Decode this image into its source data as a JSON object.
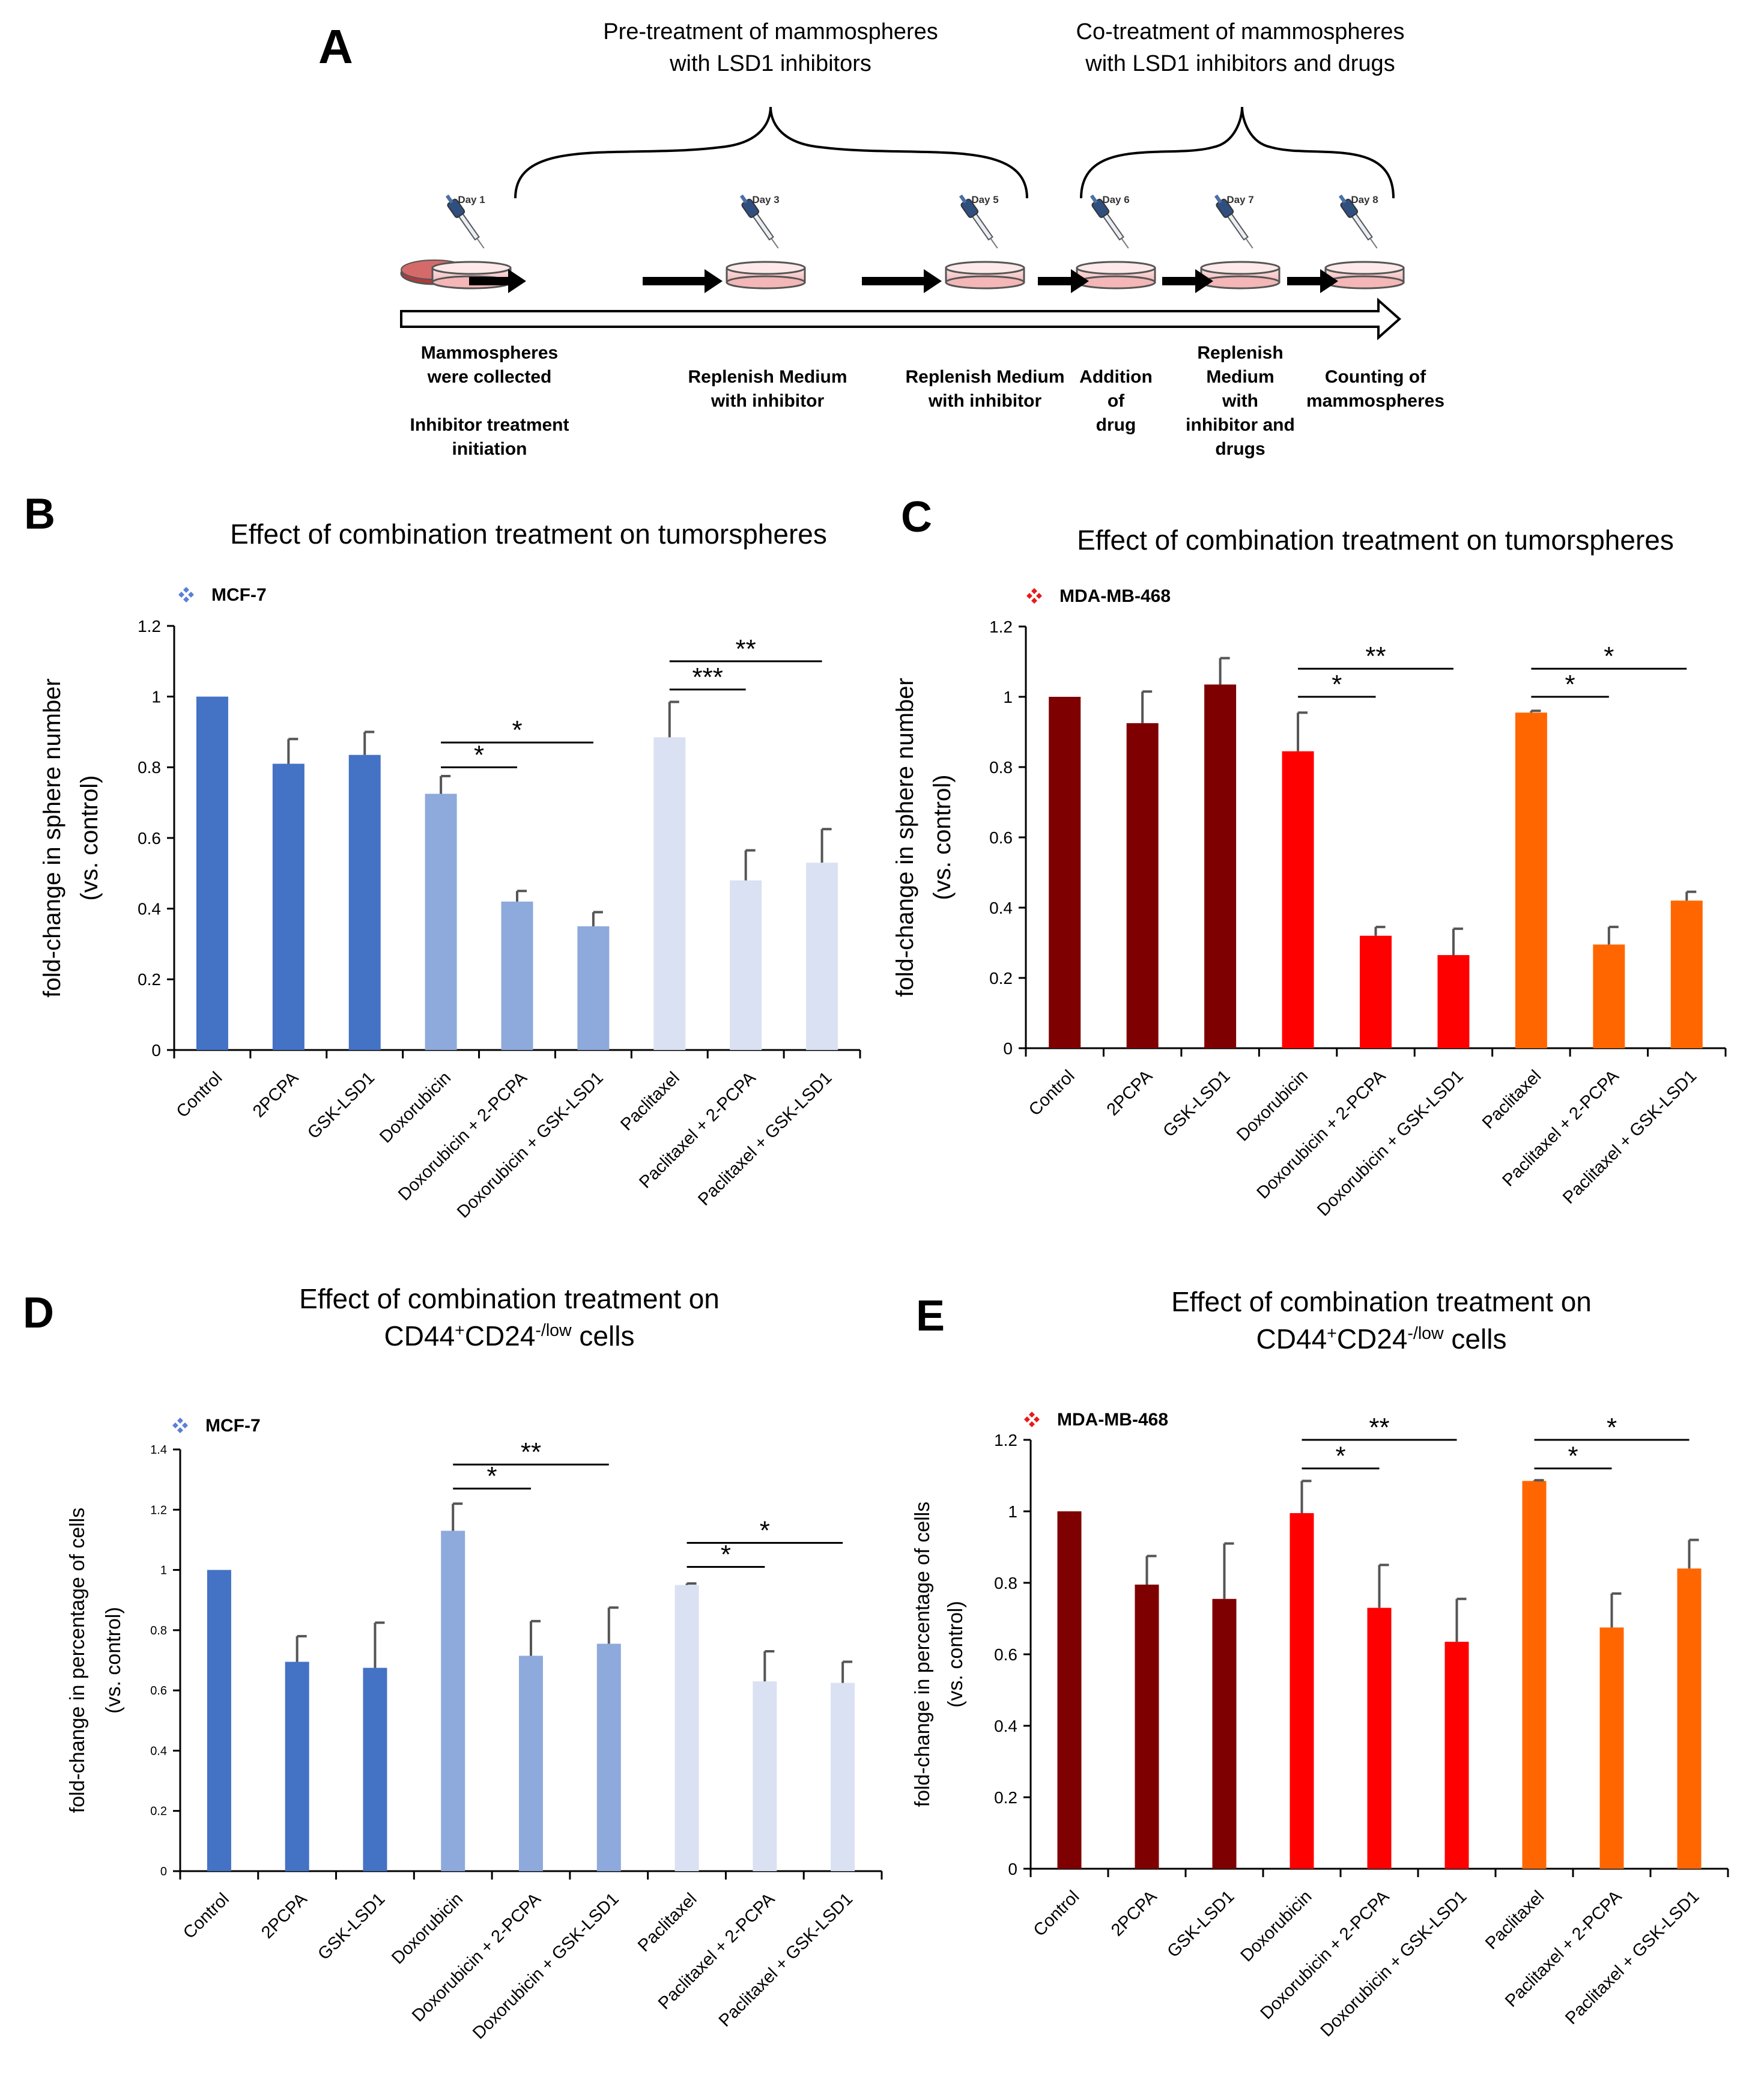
{
  "panel_a": {
    "letter": "A",
    "pretreat_label": [
      "Pre-treatment of mammospheres",
      "with LSD1 inhibitors"
    ],
    "cotreat_label": [
      "Co-treatment of mammospheres",
      "with LSD1 inhibitors and drugs"
    ],
    "days": [
      "Day 1",
      "Day 3",
      "Day 5",
      "Day 6",
      "Day 7",
      "Day 8"
    ],
    "step_collected": [
      "Mammospheres",
      "were collected"
    ],
    "step_initiation": [
      "Inhibitor treatment",
      "initiation"
    ],
    "step_replenish1": [
      "Replenish Medium",
      "with inhibitor"
    ],
    "step_replenish2": [
      "Replenish Medium",
      "with inhibitor"
    ],
    "step_addition": [
      "Addition",
      "of",
      "drug"
    ],
    "step_replenish3": [
      "Replenish",
      "Medium",
      "with",
      "inhibitor and",
      "drugs"
    ],
    "step_counting": [
      "Counting of",
      "mammospheres"
    ]
  },
  "colors": {
    "mcf_dark": "#4472C4",
    "mcf_mid": "#8EA9DB",
    "mcf_light": "#D9E1F2",
    "mda_dark": "#7F0000",
    "mda_mid": "#FF0000",
    "mda_light": "#FF6600",
    "mcf_legend_icon": "#5B7FD6",
    "mda_legend_icon": "#E8191A"
  },
  "chart_data": [
    {
      "panel": "B",
      "type": "bar",
      "title": [
        "Effect of combination treatment on tumorspheres"
      ],
      "legend": "MCF-7",
      "ylabel": [
        "fold-change in  sphere number",
        "(vs. control)"
      ],
      "ylim": [
        0,
        1.2
      ],
      "yticks": [
        "0",
        "0.2",
        "0.4",
        "0.6",
        "0.8",
        "1",
        "1.2"
      ],
      "categories": [
        "Control",
        "2PCPA",
        "GSK-LSD1",
        "Doxorubicin",
        "Doxorubicin + 2-PCPA",
        "Doxorubicin + GSK-LSD1",
        "Paclitaxel",
        "Paclitaxel + 2-PCPA",
        "Paclitaxel + GSK-LSD1"
      ],
      "values": [
        1.0,
        0.81,
        0.835,
        0.725,
        0.42,
        0.35,
        0.885,
        0.48,
        0.53
      ],
      "errors": [
        0,
        0.07,
        0.065,
        0.05,
        0.03,
        0.04,
        0.1,
        0.085,
        0.095
      ],
      "significance": [
        {
          "from": 3,
          "to": 4,
          "label": "*",
          "y": 0.8
        },
        {
          "from": 3,
          "to": 5,
          "label": "*",
          "y": 0.87
        },
        {
          "from": 6,
          "to": 7,
          "label": "***",
          "y": 1.02
        },
        {
          "from": 6,
          "to": 8,
          "label": "**",
          "y": 1.1
        }
      ]
    },
    {
      "panel": "C",
      "type": "bar",
      "title": [
        "Effect of combination treatment on tumorspheres"
      ],
      "legend": "MDA-MB-468",
      "ylabel": [
        "fold-change in  sphere number",
        "(vs. control)"
      ],
      "ylim": [
        0,
        1.2
      ],
      "yticks": [
        "0",
        "0.2",
        "0.4",
        "0.6",
        "0.8",
        "1",
        "1.2"
      ],
      "categories": [
        "Control",
        "2PCPA",
        "GSK-LSD1",
        "Doxorubicin",
        "Doxorubicin + 2-PCPA",
        "Doxorubicin + GSK-LSD1",
        "Paclitaxel",
        "Paclitaxel + 2-PCPA",
        "Paclitaxel + GSK-LSD1"
      ],
      "values": [
        1.0,
        0.925,
        1.035,
        0.845,
        0.32,
        0.265,
        0.955,
        0.295,
        0.42
      ],
      "errors": [
        0,
        0.09,
        0.075,
        0.11,
        0.025,
        0.075,
        0.005,
        0.05,
        0.025
      ],
      "significance": [
        {
          "from": 3,
          "to": 4,
          "label": "*",
          "y": 1.0
        },
        {
          "from": 3,
          "to": 5,
          "label": "**",
          "y": 1.08
        },
        {
          "from": 6,
          "to": 7,
          "label": "*",
          "y": 1.0
        },
        {
          "from": 6,
          "to": 8,
          "label": "*",
          "y": 1.08
        }
      ]
    },
    {
      "panel": "D",
      "type": "bar",
      "title": [
        "Effect of combination treatment on",
        "CD44+CD24-/low cells"
      ],
      "legend": "MCF-7",
      "ylabel": [
        "fold-change in percentage of cells",
        "(vs. control)"
      ],
      "ylim": [
        0,
        1.4
      ],
      "yticks": [
        "0",
        "0.2",
        "0.4",
        "0.6",
        "0.8",
        "1",
        "1.2",
        "1.4"
      ],
      "categories": [
        "Control",
        "2PCPA",
        "GSK-LSD1",
        "Doxorubicin",
        "Doxorubicin + 2-PCPA",
        "Doxorubicin + GSK-LSD1",
        "Paclitaxel",
        "Paclitaxel + 2-PCPA",
        "Paclitaxel + GSK-LSD1"
      ],
      "values": [
        1.0,
        0.695,
        0.675,
        1.13,
        0.715,
        0.755,
        0.95,
        0.63,
        0.625
      ],
      "errors": [
        0,
        0.085,
        0.15,
        0.09,
        0.115,
        0.12,
        0.005,
        0.1,
        0.07
      ],
      "significance": [
        {
          "from": 3,
          "to": 4,
          "label": "*",
          "y": 1.27
        },
        {
          "from": 3,
          "to": 5,
          "label": "**",
          "y": 1.35
        },
        {
          "from": 6,
          "to": 7,
          "label": "*",
          "y": 1.01
        },
        {
          "from": 6,
          "to": 8,
          "label": "*",
          "y": 1.09
        }
      ]
    },
    {
      "panel": "E",
      "type": "bar",
      "title": [
        "Effect of combination treatment on",
        "CD44+CD24-/low cells"
      ],
      "legend": "MDA-MB-468",
      "ylabel": [
        "fold-change in percentage of cells",
        "(vs. control)"
      ],
      "ylim": [
        0,
        1.2
      ],
      "yticks": [
        "0",
        "0.2",
        "0.4",
        "0.6",
        "0.8",
        "1",
        "1.2"
      ],
      "categories": [
        "Control",
        "2PCPA",
        "GSK-LSD1",
        "Doxorubicin",
        "Doxorubicin + 2-PCPA",
        "Doxorubicin + GSK-LSD1",
        "Paclitaxel",
        "Paclitaxel + 2-PCPA",
        "Paclitaxel + GSK-LSD1"
      ],
      "values": [
        1.0,
        0.795,
        0.755,
        0.995,
        0.73,
        0.635,
        1.085,
        0.675,
        0.84
      ],
      "errors": [
        0,
        0.08,
        0.155,
        0.09,
        0.12,
        0.12,
        0.002,
        0.095,
        0.08
      ],
      "significance": [
        {
          "from": 3,
          "to": 4,
          "label": "*",
          "y": 1.12
        },
        {
          "from": 3,
          "to": 5,
          "label": "**",
          "y": 1.2
        },
        {
          "from": 6,
          "to": 7,
          "label": "*",
          "y": 1.12
        },
        {
          "from": 6,
          "to": 8,
          "label": "*",
          "y": 1.2
        }
      ]
    }
  ]
}
